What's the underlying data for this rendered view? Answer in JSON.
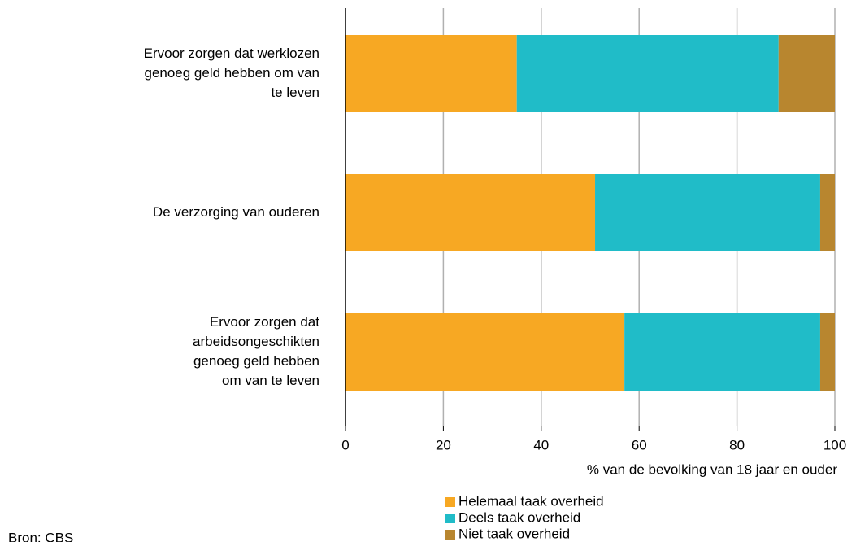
{
  "chart_data": {
    "type": "stacked_barh",
    "categories": [
      [
        "Ervoor zorgen dat werklozen",
        "genoeg geld hebben om van",
        "te leven"
      ],
      [
        "De verzorging van ouderen"
      ],
      [
        "Ervoor zorgen dat",
        "arbeidsongeschikten",
        "genoeg geld hebben",
        "om van te leven"
      ]
    ],
    "series": [
      {
        "name": "Helemaal taak overheid",
        "color": "#f7a823",
        "values": [
          35,
          51,
          57
        ]
      },
      {
        "name": "Deels taak overheid",
        "color": "#20bcc8",
        "values": [
          53.5,
          46,
          40
        ]
      },
      {
        "name": "Niet taak overheid",
        "color": "#b8862f",
        "values": [
          11.5,
          3,
          3
        ]
      }
    ],
    "xlabel": "% van de bevolking van 18 jaar en ouder",
    "xlim": [
      0,
      100
    ],
    "xticks": [
      0,
      20,
      40,
      60,
      80,
      100
    ],
    "grid": true,
    "legend": "bottom",
    "source": "Bron: CBS"
  }
}
